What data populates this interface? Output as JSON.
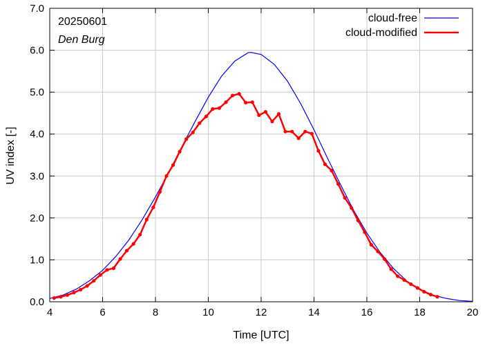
{
  "chart_data": {
    "type": "line",
    "xlabel": "Time  [UTC]",
    "ylabel": "UV index  [-]",
    "xlim": [
      4,
      20
    ],
    "ylim": [
      0,
      7
    ],
    "x_ticks": [
      4,
      6,
      8,
      10,
      12,
      14,
      16,
      18,
      20
    ],
    "y_ticks": [
      0,
      1,
      2,
      3,
      4,
      5,
      6,
      7
    ],
    "y_tick_labels": [
      "0.0",
      "1.0",
      "2.0",
      "3.0",
      "4.0",
      "5.0",
      "6.0",
      "7.0"
    ],
    "annotations": {
      "date": "20250601",
      "station": "Den Burg"
    },
    "legend_position": "top-right",
    "clear_sky": {
      "peak_time": 11.6,
      "peak_value": 5.95,
      "end_time": 20.0
    },
    "series": [
      {
        "name": "cloud-free",
        "color": "#0000ff",
        "x": [
          4.0,
          4.5,
          5.0,
          5.5,
          6.0,
          6.5,
          7.0,
          7.5,
          8.0,
          8.5,
          9.0,
          9.5,
          10.0,
          10.5,
          11.0,
          11.5,
          11.6,
          12.0,
          12.5,
          13.0,
          13.5,
          14.0,
          14.5,
          15.0,
          15.5,
          16.0,
          16.5,
          17.0,
          17.5,
          18.0,
          18.5,
          19.0,
          19.5,
          20.0
        ],
        "values": [
          0.08,
          0.16,
          0.3,
          0.5,
          0.75,
          1.08,
          1.48,
          1.96,
          2.5,
          3.08,
          3.7,
          4.3,
          4.88,
          5.38,
          5.74,
          5.94,
          5.95,
          5.9,
          5.66,
          5.26,
          4.72,
          4.1,
          3.44,
          2.8,
          2.18,
          1.64,
          1.18,
          0.8,
          0.5,
          0.3,
          0.16,
          0.08,
          0.03,
          0.01
        ]
      },
      {
        "name": "cloud-modified",
        "color": "#ff0000",
        "x": [
          4.167,
          4.417,
          4.667,
          4.917,
          5.167,
          5.417,
          5.667,
          5.917,
          6.167,
          6.417,
          6.667,
          6.917,
          7.167,
          7.417,
          7.667,
          7.917,
          8.167,
          8.417,
          8.667,
          8.917,
          9.167,
          9.417,
          9.667,
          9.917,
          10.167,
          10.417,
          10.667,
          10.917,
          11.167,
          11.417,
          11.667,
          11.917,
          12.167,
          12.417,
          12.667,
          12.917,
          13.167,
          13.417,
          13.667,
          13.917,
          14.167,
          14.417,
          14.667,
          14.917,
          15.167,
          15.417,
          15.667,
          15.917,
          16.167,
          16.417,
          16.667,
          16.917,
          17.167,
          17.417,
          17.667,
          17.917,
          18.167,
          18.417,
          18.667
        ],
        "values": [
          0.09,
          0.12,
          0.16,
          0.22,
          0.29,
          0.38,
          0.5,
          0.64,
          0.76,
          0.8,
          1.02,
          1.22,
          1.38,
          1.6,
          1.96,
          2.25,
          2.62,
          3.0,
          3.26,
          3.58,
          3.88,
          4.04,
          4.26,
          4.42,
          4.6,
          4.62,
          4.76,
          4.92,
          4.96,
          4.75,
          4.76,
          4.45,
          4.53,
          4.3,
          4.48,
          4.06,
          4.06,
          3.9,
          4.06,
          4.01,
          3.6,
          3.28,
          3.13,
          2.81,
          2.48,
          2.24,
          1.94,
          1.66,
          1.36,
          1.2,
          1.02,
          0.78,
          0.61,
          0.52,
          0.42,
          0.33,
          0.24,
          0.17,
          0.12
        ]
      }
    ]
  }
}
